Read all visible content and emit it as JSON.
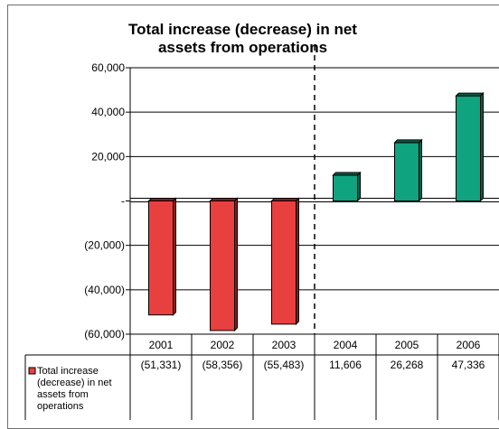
{
  "chart_data": {
    "type": "bar",
    "title_lines": [
      "Total increase (decrease) in net",
      "assets from operations"
    ],
    "categories": [
      "2001",
      "2002",
      "2003",
      "2004",
      "2005",
      "2006"
    ],
    "series": [
      {
        "name": "Total increase (decrease) in net assets from operations",
        "name_lines": [
          "Total increase",
          "(decrease) in net",
          "assets from",
          "operations"
        ],
        "values": [
          -51331,
          -58356,
          -55483,
          11606,
          26268,
          47336
        ],
        "value_labels": [
          "(51,331)",
          "(58,356)",
          "(55,483)",
          "11,606",
          "26,268",
          "47,336"
        ]
      }
    ],
    "y_ticks": [
      60000,
      40000,
      20000,
      0,
      -20000,
      -40000,
      -60000
    ],
    "y_tick_labels": [
      "60,000",
      "40,000",
      "20,000",
      "-",
      "(20,000)",
      "(40,000)",
      "(60,000)"
    ],
    "ylim": [
      -60000,
      60000
    ],
    "grid": true,
    "legend": "data-table",
    "colors": {
      "negative_bar": "#e8403f",
      "negative_top": "#8c1a1a",
      "positive_bar": "#0fa37f",
      "positive_top": "#0a5e48"
    }
  }
}
